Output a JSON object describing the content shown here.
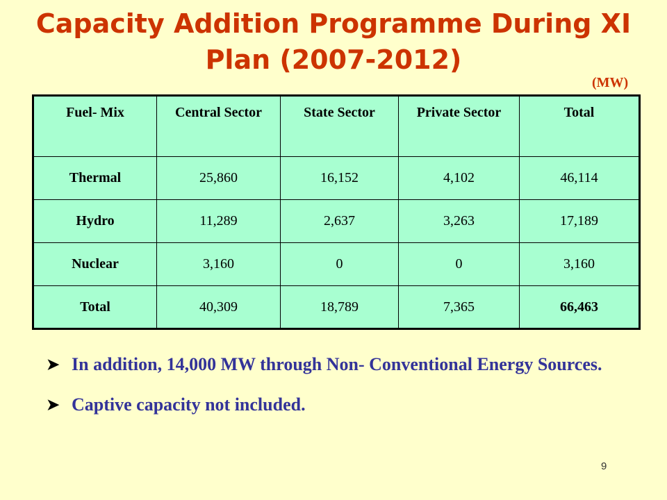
{
  "slide": {
    "title": "Capacity Addition Programme During XI Plan (2007-2012)",
    "unit": "(MW)",
    "page_number": "9"
  },
  "table": {
    "headers": [
      "Fuel- Mix",
      "Central Sector",
      "State Sector",
      "Private Sector",
      "Total"
    ],
    "rows": [
      [
        "Thermal",
        "25,860",
        "16,152",
        "4,102",
        "46,114"
      ],
      [
        "Hydro",
        "11,289",
        "2,637",
        "3,263",
        "17,189"
      ],
      [
        "Nuclear",
        "3,160",
        "0",
        "0",
        "3,160"
      ],
      [
        "Total",
        "40,309",
        "18,789",
        "7,365",
        "66,463"
      ]
    ]
  },
  "notes": [
    "In addition, 14,000 MW through Non- Conventional Energy Sources.",
    "Captive capacity not included."
  ],
  "colors": {
    "background": "#FFFFCC",
    "title": "#CC3300",
    "table_fill": "#A8FFD1",
    "bullet_text": "#333399"
  },
  "icons": {
    "bullet": "arrowhead-bullet-icon"
  }
}
